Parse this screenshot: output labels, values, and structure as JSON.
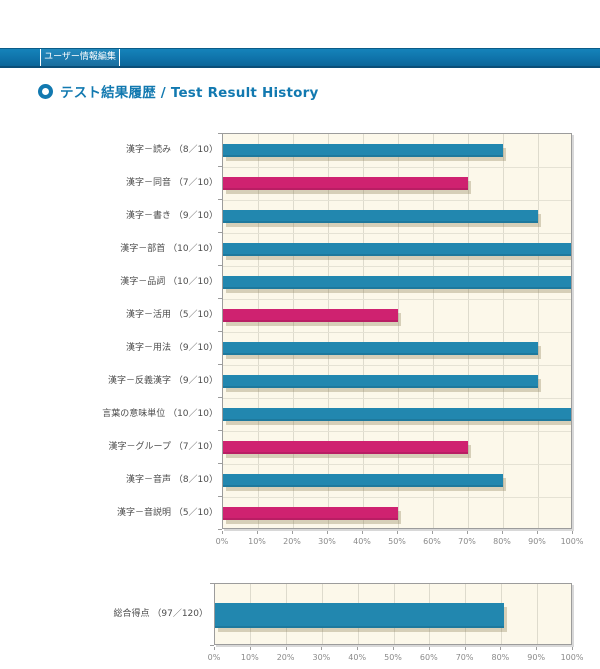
{
  "nav": {
    "tab_label": "ユーザー情報編集"
  },
  "header": {
    "title": "テスト結果履歴 / Test Result History"
  },
  "colors": {
    "accent_blue": "#1279b0",
    "nav_blue": "#0f73aa",
    "bar_blue": "#2287af",
    "bar_pink": "#cf2270",
    "plot_background": "#fcf8ea"
  },
  "chart_data": [
    {
      "type": "bar",
      "orientation": "horizontal",
      "xlim": [
        0,
        100
      ],
      "grid": true,
      "legend": "none",
      "x_tick_labels": [
        "0%",
        "10%",
        "20%",
        "30%",
        "40%",
        "50%",
        "60%",
        "70%",
        "80%",
        "90%",
        "100%"
      ],
      "categories": [
        "漢字－読み （8／10）",
        "漢字－同音 （7／10）",
        "漢字－書き （9／10）",
        "漢字－部首 （10／10）",
        "漢字－品詞 （10／10）",
        "漢字－活用 （5／10）",
        "漢字－用法 （9／10）",
        "漢字－反義漢字 （9／10）",
        "言葉の意味単位 （10／10）",
        "漢字－グループ （7／10）",
        "漢字－音声 （8／10）",
        "漢字－音説明 （5／10）"
      ],
      "values": [
        80,
        70,
        90,
        100,
        100,
        50,
        90,
        90,
        100,
        70,
        80,
        50
      ],
      "bar_colors": [
        "#2287af",
        "#cf2270",
        "#2287af",
        "#2287af",
        "#2287af",
        "#cf2270",
        "#2287af",
        "#2287af",
        "#2287af",
        "#cf2270",
        "#2287af",
        "#cf2270"
      ]
    },
    {
      "type": "bar",
      "orientation": "horizontal",
      "xlim": [
        0,
        100
      ],
      "grid": true,
      "legend": "none",
      "x_tick_labels": [
        "0%",
        "10%",
        "20%",
        "30%",
        "40%",
        "50%",
        "60%",
        "70%",
        "80%",
        "90%",
        "100%"
      ],
      "categories": [
        "総合得点 （97／120）"
      ],
      "values": [
        80.8
      ],
      "bar_colors": [
        "#2287af"
      ]
    }
  ]
}
